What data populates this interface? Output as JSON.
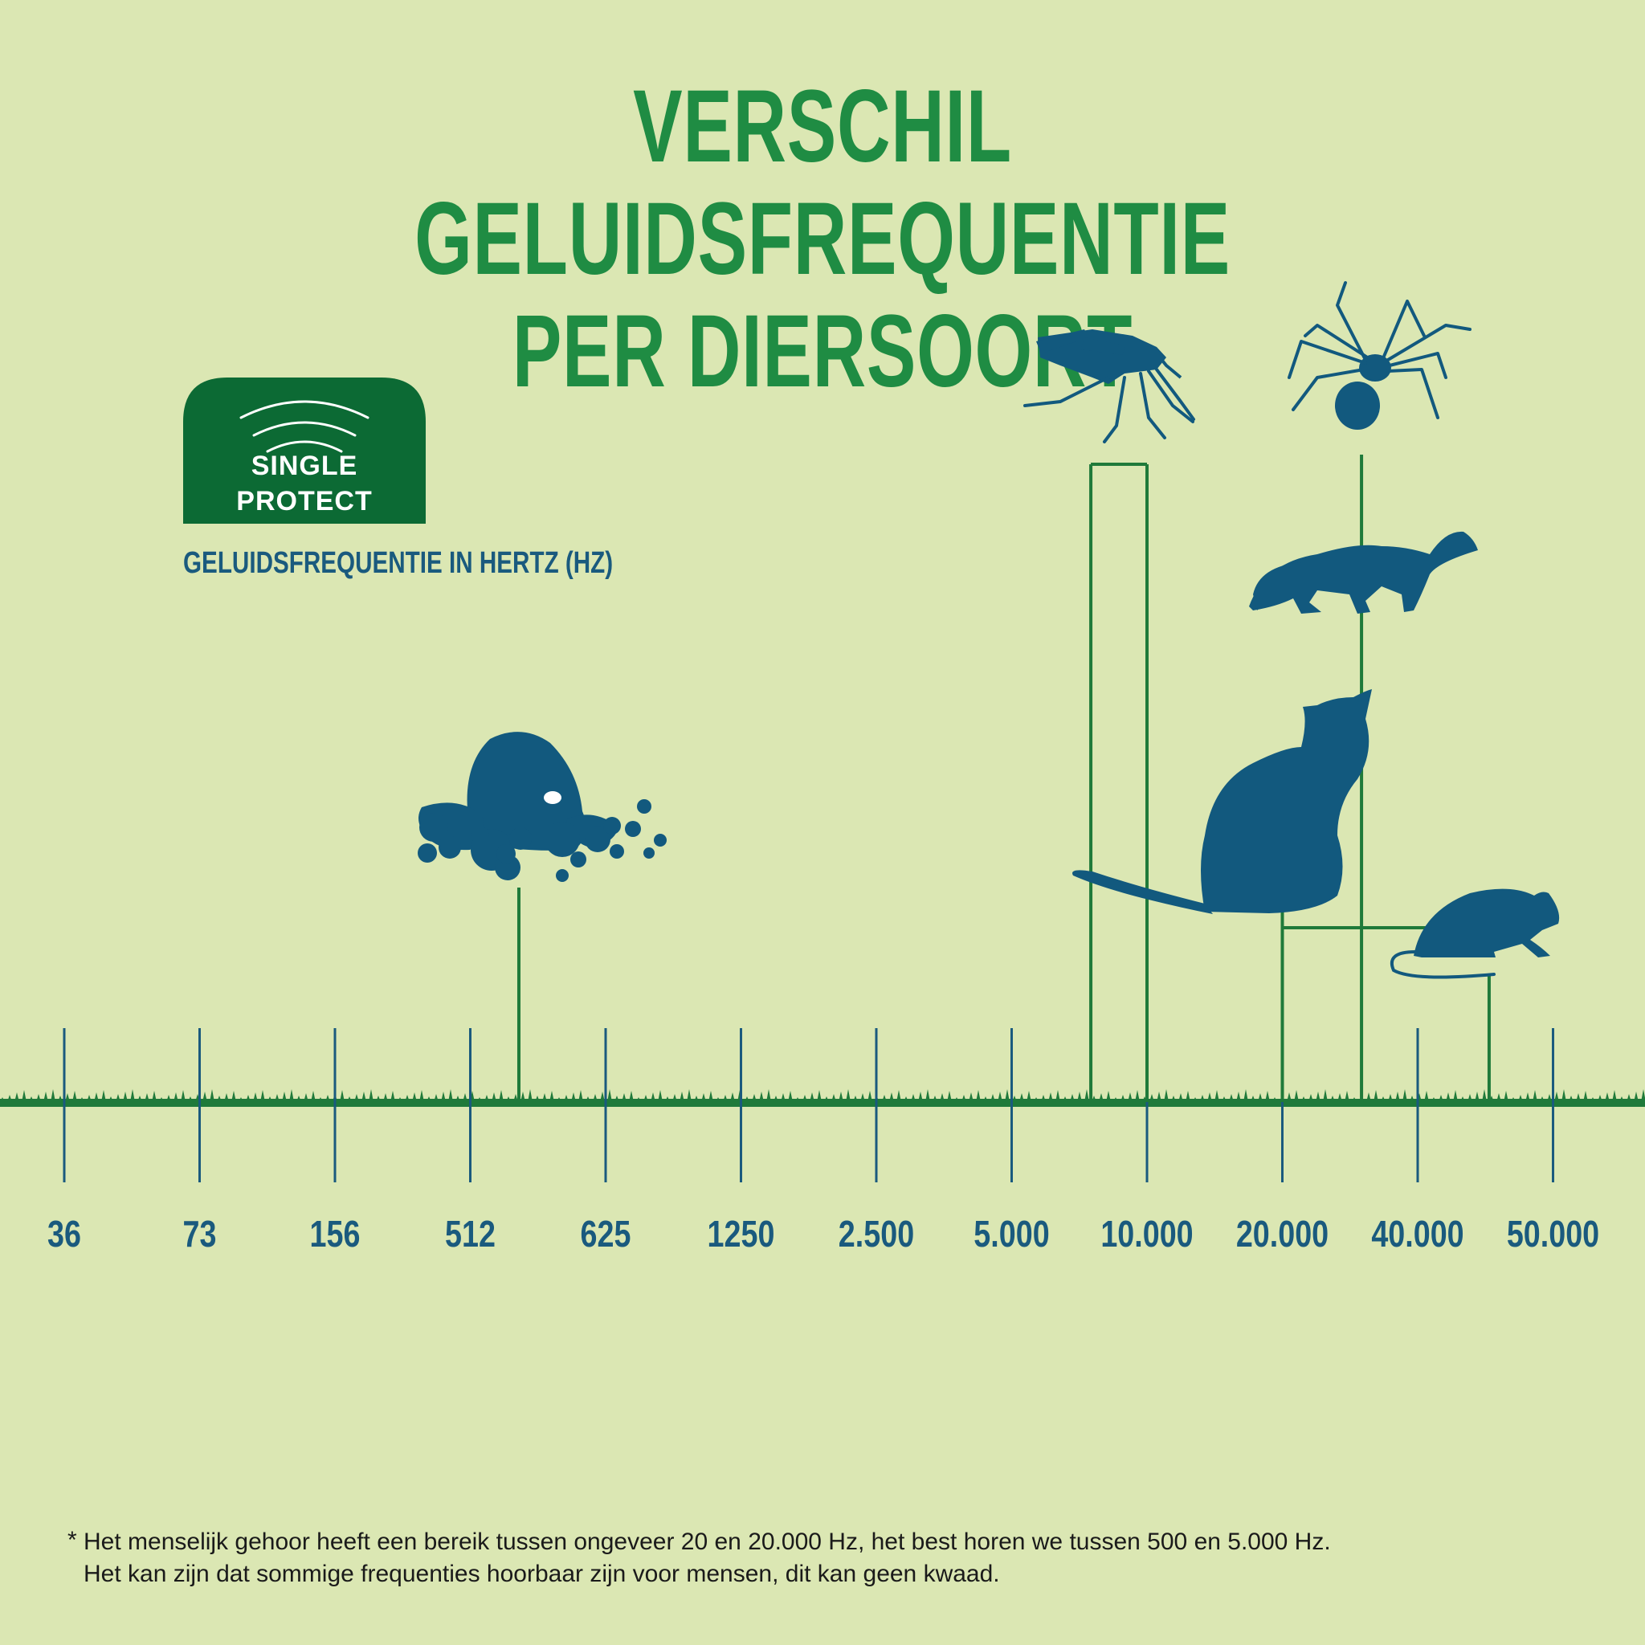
{
  "title": {
    "line1": "VERSCHIL GELUIDSFREQUENTIE",
    "line2": "PER DIERSOORT"
  },
  "logo": {
    "line1": "SINGLE",
    "line2": "PROTECT"
  },
  "colors": {
    "background": "#dbe7b3",
    "title_green": "#1f8c43",
    "bracket_green": "#1f7a3a",
    "axis_blue": "#1a5a7e",
    "silhouette_blue": "#12597e",
    "logo_green": "#0c6a34"
  },
  "footnote": {
    "marker": "*",
    "line1": "Het menselijk gehoor heeft een bereik tussen ongeveer 20 en 20.000 Hz, het best horen we tussen 500 en 5.000 Hz.",
    "line2": "Het kan zijn dat sommige frequenties hoorbaar zijn voor mensen, dit kan geen kwaad."
  },
  "chart_data": {
    "type": "range",
    "title": "VERSCHIL GELUIDSFREQUENTIE PER DIERSOORT",
    "ylabel": "GELUIDSFREQUENTIE IN HERTZ (HZ)",
    "xlabel": "",
    "categories": [
      "36",
      "73",
      "156",
      "512",
      "625",
      "1250",
      "2.500",
      "5.000",
      "10.000",
      "20.000",
      "40.000",
      "50.000"
    ],
    "x": [
      36,
      73,
      156,
      512,
      625,
      1250,
      2500,
      5000,
      10000,
      20000,
      40000,
      50000
    ],
    "scale": "ordinal",
    "grid": false,
    "series": [
      {
        "icon": "mole-icon",
        "from": 550,
        "to": 550
      },
      {
        "icon": "mosquito-icon",
        "from": 7500,
        "to": 10000
      },
      {
        "icon": "spider-icon",
        "from": 30000,
        "to": 30000
      },
      {
        "icon": "marten-icon",
        "from": 30000,
        "to": 30000
      },
      {
        "icon": "cat-icon",
        "from": 20000,
        "to": 30000
      },
      {
        "icon": "mouse-icon",
        "from": 20000,
        "to": 45000
      }
    ]
  }
}
